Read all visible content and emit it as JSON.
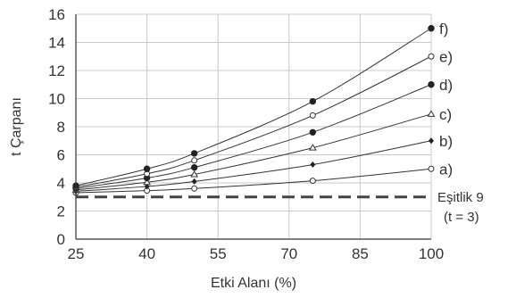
{
  "chart_data": {
    "type": "line",
    "xlabel": "Etki Alanı (%)",
    "ylabel": "t Çarpanı",
    "xlim": [
      25,
      100
    ],
    "ylim": [
      0,
      16
    ],
    "xticks": [
      25,
      40,
      55,
      70,
      85,
      100
    ],
    "yticks": [
      0,
      2,
      4,
      6,
      8,
      10,
      12,
      14,
      16
    ],
    "grid": true,
    "legend": "labels at right end of each curve",
    "reference_line": {
      "y": 3,
      "label_line1": "Eşitlik 9",
      "label_line2": "(t = 3)"
    },
    "series": [
      {
        "name": "a)",
        "marker": "open-circle",
        "x": [
          25,
          40,
          50,
          75,
          100
        ],
        "values": [
          3.3,
          3.45,
          3.6,
          4.15,
          5.0
        ]
      },
      {
        "name": "b)",
        "marker": "filled-diamond",
        "x": [
          25,
          40,
          50,
          75,
          100
        ],
        "values": [
          3.4,
          3.75,
          4.1,
          5.3,
          7.0
        ]
      },
      {
        "name": "c)",
        "marker": "open-triangle",
        "x": [
          25,
          40,
          50,
          75,
          100
        ],
        "values": [
          3.5,
          4.05,
          4.6,
          6.5,
          8.9
        ]
      },
      {
        "name": "d)",
        "marker": "filled-circle",
        "x": [
          25,
          40,
          50,
          75,
          100
        ],
        "values": [
          3.6,
          4.35,
          5.1,
          7.6,
          11.0
        ]
      },
      {
        "name": "e)",
        "marker": "open-circle",
        "x": [
          25,
          40,
          50,
          75,
          100
        ],
        "values": [
          3.7,
          4.65,
          5.6,
          8.8,
          13.0
        ]
      },
      {
        "name": "f)",
        "marker": "filled-circle",
        "x": [
          25,
          40,
          50,
          75,
          100
        ],
        "values": [
          3.8,
          5.0,
          6.1,
          9.8,
          15.0
        ]
      }
    ]
  }
}
